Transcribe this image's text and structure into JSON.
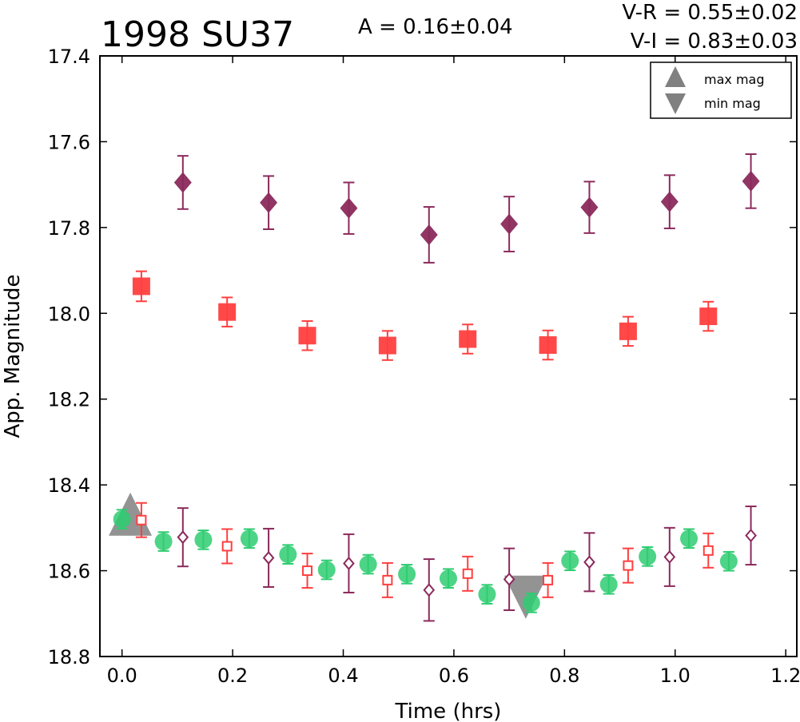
{
  "chart_data": {
    "type": "scatter",
    "title": "1998 SU37",
    "stats": {
      "amplitude": "A  = 0.16±0.04",
      "v_r": "V-R = 0.55±0.02",
      "v_i": "V-I  = 0.83±0.03"
    },
    "xlabel": "Time (hrs)",
    "ylabel": "App. Magnitude",
    "xlim": [
      -0.04,
      1.22
    ],
    "ylim": [
      18.8,
      17.4
    ],
    "y_inverted": true,
    "xticks": [
      "0.0",
      "0.2",
      "0.4",
      "0.6",
      "0.8",
      "1.0",
      "1.2"
    ],
    "yticks": [
      "17.4",
      "17.6",
      "17.8",
      "18.0",
      "18.2",
      "18.4",
      "18.6",
      "18.8"
    ],
    "grid": false,
    "legend_position": "top-right",
    "legend": [
      {
        "label": "max mag",
        "marker": "triangle-up",
        "color": "#808080"
      },
      {
        "label": "min mag",
        "marker": "triangle-down",
        "color": "#808080"
      }
    ],
    "series": [
      {
        "marker": "diamond-filled",
        "color": "#8b2a5c",
        "points": [
          {
            "x": 0.11,
            "y": 17.695,
            "err": 0.062
          },
          {
            "x": 0.265,
            "y": 17.742,
            "err": 0.062
          },
          {
            "x": 0.41,
            "y": 17.755,
            "err": 0.06
          },
          {
            "x": 0.555,
            "y": 17.817,
            "err": 0.065
          },
          {
            "x": 0.7,
            "y": 17.792,
            "err": 0.064
          },
          {
            "x": 0.845,
            "y": 17.753,
            "err": 0.06
          },
          {
            "x": 0.99,
            "y": 17.74,
            "err": 0.062
          },
          {
            "x": 1.137,
            "y": 17.692,
            "err": 0.063
          }
        ]
      },
      {
        "marker": "square-filled",
        "color": "#ff3f3f",
        "points": [
          {
            "x": 0.035,
            "y": 17.937,
            "err": 0.035
          },
          {
            "x": 0.19,
            "y": 17.997,
            "err": 0.034
          },
          {
            "x": 0.335,
            "y": 18.052,
            "err": 0.034
          },
          {
            "x": 0.48,
            "y": 18.075,
            "err": 0.034
          },
          {
            "x": 0.625,
            "y": 18.06,
            "err": 0.034
          },
          {
            "x": 0.77,
            "y": 18.074,
            "err": 0.034
          },
          {
            "x": 0.915,
            "y": 18.042,
            "err": 0.034
          },
          {
            "x": 1.06,
            "y": 18.007,
            "err": 0.034
          }
        ]
      },
      {
        "marker": "circle-filled",
        "color": "#2ecc71",
        "points": [
          {
            "x": 0.0,
            "y": 18.48,
            "err": 0.022
          },
          {
            "x": 0.075,
            "y": 18.532,
            "err": 0.022
          },
          {
            "x": 0.147,
            "y": 18.528,
            "err": 0.022
          },
          {
            "x": 0.23,
            "y": 18.525,
            "err": 0.022
          },
          {
            "x": 0.3,
            "y": 18.562,
            "err": 0.022
          },
          {
            "x": 0.37,
            "y": 18.598,
            "err": 0.022
          },
          {
            "x": 0.445,
            "y": 18.585,
            "err": 0.022
          },
          {
            "x": 0.515,
            "y": 18.608,
            "err": 0.022
          },
          {
            "x": 0.59,
            "y": 18.618,
            "err": 0.022
          },
          {
            "x": 0.66,
            "y": 18.655,
            "err": 0.022
          },
          {
            "x": 0.74,
            "y": 18.675,
            "err": 0.022
          },
          {
            "x": 0.81,
            "y": 18.577,
            "err": 0.022
          },
          {
            "x": 0.88,
            "y": 18.632,
            "err": 0.022
          },
          {
            "x": 0.95,
            "y": 18.567,
            "err": 0.022
          },
          {
            "x": 1.025,
            "y": 18.525,
            "err": 0.022
          },
          {
            "x": 1.097,
            "y": 18.578,
            "err": 0.022
          }
        ]
      },
      {
        "marker": "square-open",
        "color": "#ff3f3f",
        "points": [
          {
            "x": 0.035,
            "y": 18.482,
            "err": 0.04
          },
          {
            "x": 0.19,
            "y": 18.543,
            "err": 0.04
          },
          {
            "x": 0.335,
            "y": 18.6,
            "err": 0.04
          },
          {
            "x": 0.48,
            "y": 18.622,
            "err": 0.04
          },
          {
            "x": 0.625,
            "y": 18.607,
            "err": 0.04
          },
          {
            "x": 0.77,
            "y": 18.622,
            "err": 0.04
          },
          {
            "x": 0.915,
            "y": 18.588,
            "err": 0.04
          },
          {
            "x": 1.06,
            "y": 18.553,
            "err": 0.04
          }
        ]
      },
      {
        "marker": "diamond-open",
        "color": "#8b2a5c",
        "points": [
          {
            "x": 0.11,
            "y": 18.522,
            "err": 0.068
          },
          {
            "x": 0.265,
            "y": 18.57,
            "err": 0.068
          },
          {
            "x": 0.41,
            "y": 18.583,
            "err": 0.068
          },
          {
            "x": 0.555,
            "y": 18.645,
            "err": 0.072
          },
          {
            "x": 0.7,
            "y": 18.62,
            "err": 0.072
          },
          {
            "x": 0.845,
            "y": 18.58,
            "err": 0.068
          },
          {
            "x": 0.99,
            "y": 18.568,
            "err": 0.068
          },
          {
            "x": 1.137,
            "y": 18.518,
            "err": 0.068
          }
        ]
      }
    ],
    "extrema": [
      {
        "kind": "max mag",
        "marker": "triangle-up",
        "x": 0.015,
        "y": 18.485,
        "color": "#808080"
      },
      {
        "kind": "min mag",
        "marker": "triangle-down",
        "x": 0.73,
        "y": 18.645,
        "color": "#808080"
      }
    ]
  }
}
